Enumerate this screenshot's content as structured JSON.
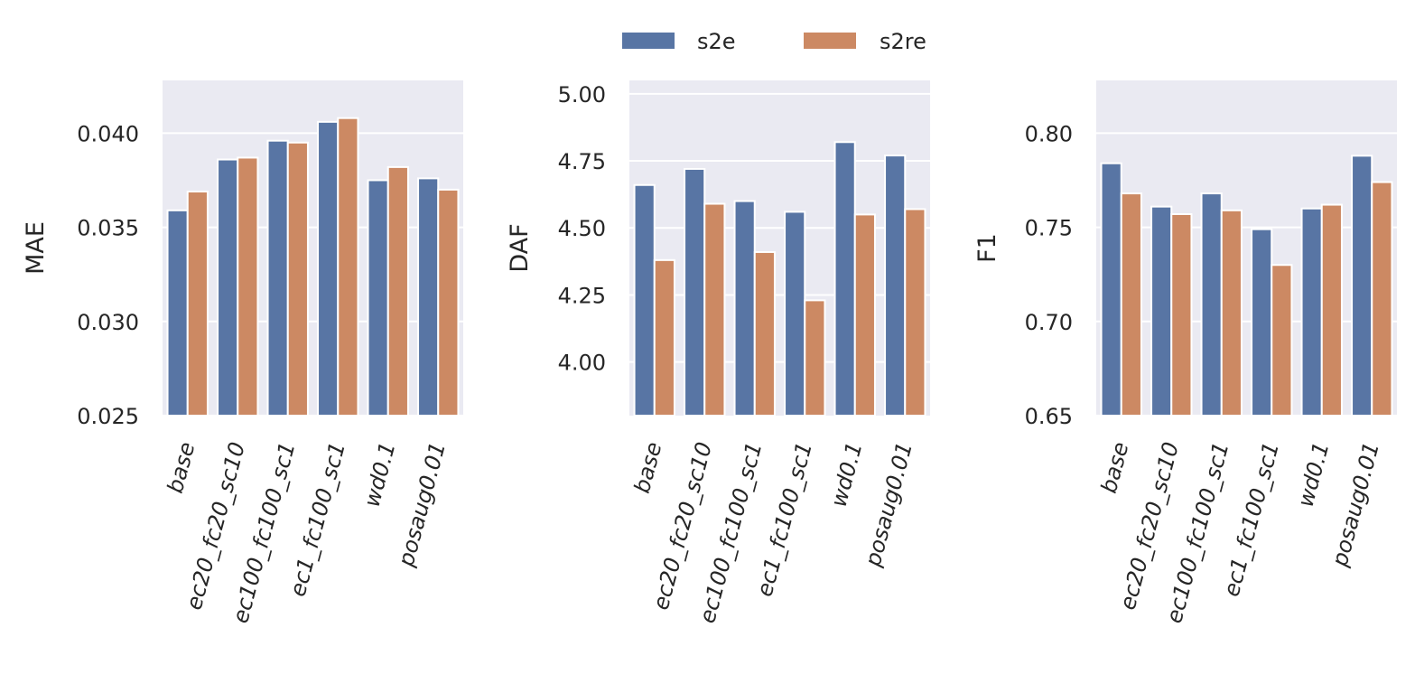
{
  "legend": {
    "placement": "top-center",
    "entries": [
      {
        "name": "s2e",
        "color": "#5875a4"
      },
      {
        "name": "s2re",
        "color": "#cc8963"
      }
    ]
  },
  "style": {
    "panel_background": "#eaeaf2",
    "grid_color": "#ffffff",
    "text_color": "#262626"
  },
  "chart_data": [
    {
      "type": "bar",
      "ylabel": "MAE",
      "xlabel": "",
      "ylim": [
        0.025,
        0.0428
      ],
      "yticks": [
        0.025,
        0.03,
        0.035,
        0.04
      ],
      "ytick_labels": [
        "0.025",
        "0.030",
        "0.035",
        "0.040"
      ],
      "grid": true,
      "categories": [
        "base",
        "ec20_fc20_sc10",
        "ec100_fc100_sc1",
        "ec1_fc100_sc1",
        "wd0.1",
        "posaug0.01"
      ],
      "series": [
        {
          "name": "s2e",
          "values": [
            0.0359,
            0.0386,
            0.0396,
            0.0406,
            0.0375,
            0.0376
          ]
        },
        {
          "name": "s2re",
          "values": [
            0.0369,
            0.0387,
            0.0395,
            0.0408,
            0.0382,
            0.037
          ]
        }
      ]
    },
    {
      "type": "bar",
      "ylabel": "DAF",
      "xlabel": "",
      "ylim": [
        3.8,
        5.05
      ],
      "yticks": [
        4.0,
        4.25,
        4.5,
        4.75,
        5.0
      ],
      "ytick_labels": [
        "4.00",
        "4.25",
        "4.50",
        "4.75",
        "5.00"
      ],
      "grid": true,
      "categories": [
        "base",
        "ec20_fc20_sc10",
        "ec100_fc100_sc1",
        "ec1_fc100_sc1",
        "wd0.1",
        "posaug0.01"
      ],
      "series": [
        {
          "name": "s2e",
          "values": [
            4.66,
            4.72,
            4.6,
            4.56,
            4.82,
            4.77
          ]
        },
        {
          "name": "s2re",
          "values": [
            4.38,
            4.59,
            4.41,
            4.23,
            4.55,
            4.57
          ]
        }
      ]
    },
    {
      "type": "bar",
      "ylabel": "F1",
      "xlabel": "",
      "ylim": [
        0.65,
        0.828
      ],
      "yticks": [
        0.65,
        0.7,
        0.75,
        0.8
      ],
      "ytick_labels": [
        "0.65",
        "0.70",
        "0.75",
        "0.80"
      ],
      "grid": true,
      "categories": [
        "base",
        "ec20_fc20_sc10",
        "ec100_fc100_sc1",
        "ec1_fc100_sc1",
        "wd0.1",
        "posaug0.01"
      ],
      "series": [
        {
          "name": "s2e",
          "values": [
            0.784,
            0.761,
            0.768,
            0.749,
            0.76,
            0.788
          ]
        },
        {
          "name": "s2re",
          "values": [
            0.768,
            0.757,
            0.759,
            0.73,
            0.762,
            0.774
          ]
        }
      ]
    }
  ]
}
